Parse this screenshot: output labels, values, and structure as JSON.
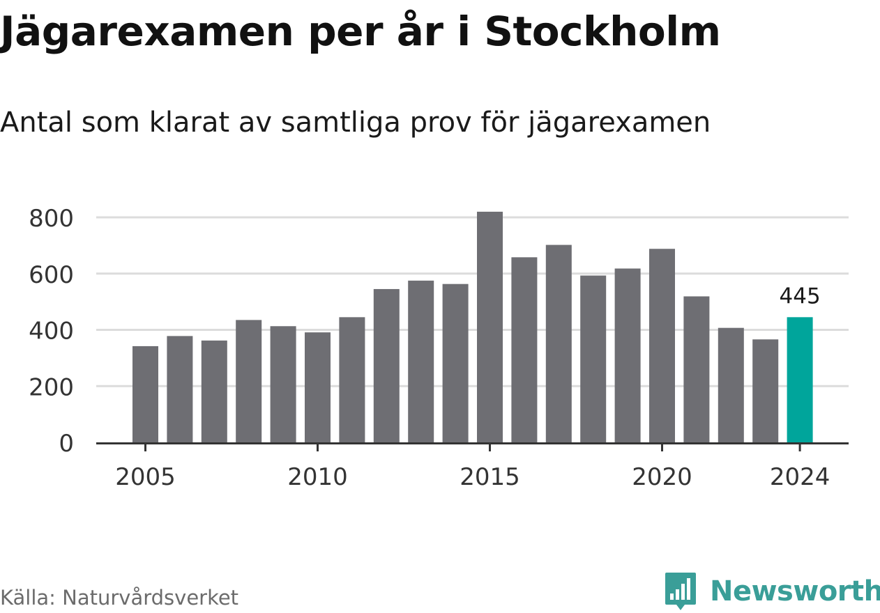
{
  "chart_data": {
    "type": "bar",
    "title": "Jägarexamen per år i Stockholm",
    "subtitle": "Antal som klarat av samtliga prov för jägarexamen",
    "xlabel": "",
    "ylabel": "",
    "categories": [
      "2005",
      "2006",
      "2007",
      "2008",
      "2009",
      "2010",
      "2011",
      "2012",
      "2013",
      "2014",
      "2015",
      "2016",
      "2017",
      "2018",
      "2019",
      "2020",
      "2021",
      "2022",
      "2023",
      "2024"
    ],
    "values": [
      342,
      378,
      362,
      435,
      413,
      391,
      445,
      545,
      575,
      563,
      820,
      658,
      702,
      593,
      618,
      688,
      519,
      407,
      366,
      445
    ],
    "ylim": [
      0,
      800
    ],
    "yticks": [
      "0",
      "200",
      "400",
      "600",
      "800"
    ],
    "xtick_labels": [
      "2005",
      "2010",
      "2015",
      "2020",
      "2024"
    ],
    "highlight": {
      "category": "2024",
      "label": "445"
    },
    "grid": true,
    "legend": "none"
  },
  "colors": {
    "bar": "#6e6e73",
    "highlight": "#00a59b",
    "grid": "#dcdcdc",
    "axis": "#333333",
    "brand": "#3a9e98"
  },
  "footer": {
    "source": "Källa: Naturvårdsverket",
    "brand": "Newsworthy",
    "brand_icon": "bar-chart-pin-icon"
  }
}
